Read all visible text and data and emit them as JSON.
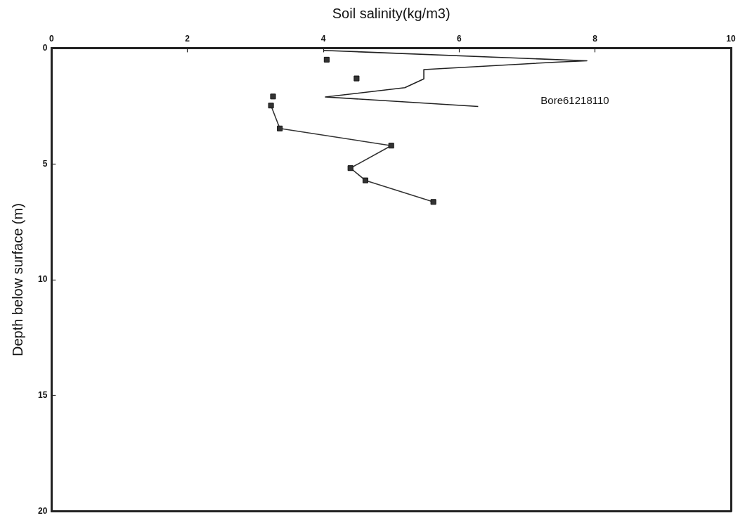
{
  "chart_data": {
    "type": "scatter",
    "xlabel": "Soil salinity(kg/m3)",
    "ylabel": "Depth below surface (m)",
    "xlim": [
      0,
      10
    ],
    "xticks": [
      0,
      2,
      4,
      6,
      8,
      10
    ],
    "ylim": [
      20,
      0
    ],
    "yticks": [
      0,
      5,
      10,
      15,
      20
    ],
    "grid": false,
    "legend": false,
    "marker": "square",
    "line_style": "solid",
    "annotations": [
      "Bore61218110"
    ],
    "series": [
      {
        "type": "scatter",
        "color": "#333333",
        "x": [
          4.05,
          4.49,
          3.26
        ],
        "values": [
          0.5,
          1.31,
          2.09
        ]
      },
      {
        "type": "line",
        "color": "#333333",
        "x": [
          3.23,
          3.36,
          5.0,
          4.4,
          4.62,
          5.62
        ],
        "values": [
          2.48,
          3.47,
          4.21,
          5.18,
          5.71,
          6.64
        ]
      },
      {
        "type": "line",
        "marker": "none",
        "color": "#222222",
        "x": [
          4.0,
          7.88,
          7.47,
          5.48,
          5.48,
          5.2,
          4.03,
          6.28
        ],
        "values": [
          0.1,
          0.55,
          0.6,
          0.93,
          1.33,
          1.71,
          2.11,
          2.52
        ]
      }
    ]
  }
}
